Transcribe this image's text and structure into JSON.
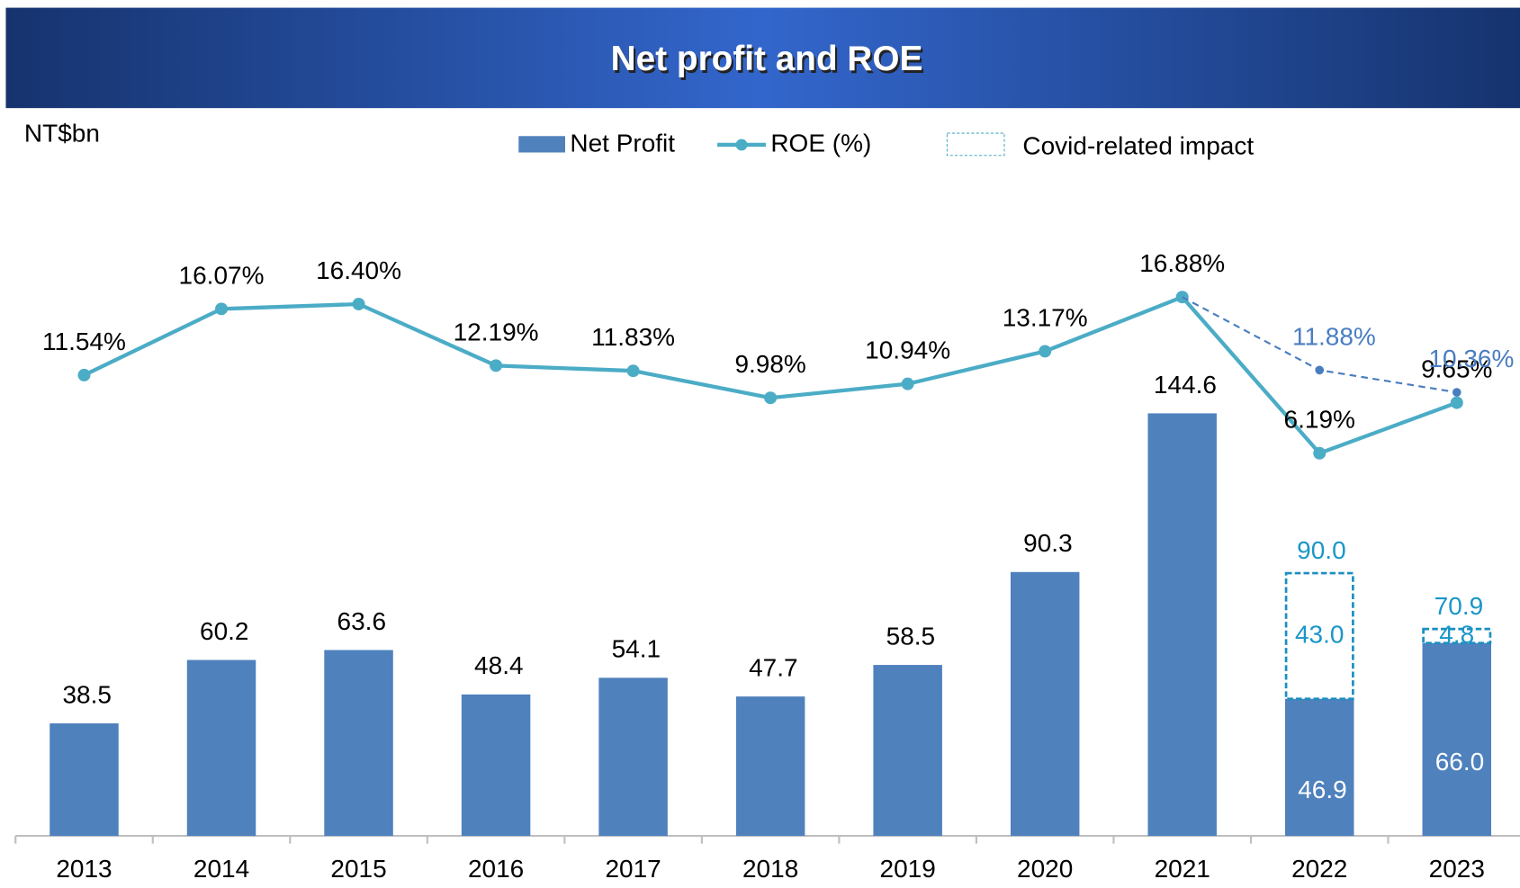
{
  "chart_data": {
    "type": "bar",
    "title": "Net profit and ROE",
    "y_unit_label": "NT$bn",
    "categories": [
      "2013",
      "2014",
      "2015",
      "2016",
      "2017",
      "2018",
      "2019",
      "2020",
      "2021",
      "2022",
      "2023"
    ],
    "ylim": [
      0,
      220
    ],
    "y2lim": [
      -20,
      24
    ],
    "series": [
      {
        "name": "Net Profit",
        "type": "bar",
        "color": "#4f81bd",
        "values": [
          38.5,
          60.2,
          63.6,
          48.4,
          54.1,
          47.7,
          58.5,
          90.3,
          144.6,
          46.9,
          66.0
        ],
        "value_labels": [
          "38.5",
          "60.2",
          "63.6",
          "48.4",
          "54.1",
          "47.7",
          "58.5",
          "90.3",
          "144.6",
          "46.9",
          "66.0"
        ]
      },
      {
        "name": "ROE (%)",
        "type": "line",
        "axis": "y2",
        "color": "#4bacc6",
        "values": [
          11.54,
          16.07,
          16.4,
          12.19,
          11.83,
          9.98,
          10.94,
          13.17,
          16.88,
          6.19,
          9.65
        ],
        "value_labels": [
          "11.54%",
          "16.07%",
          "16.40%",
          "12.19%",
          "11.83%",
          "9.98%",
          "10.94%",
          "13.17%",
          "16.88%",
          "6.19%",
          "9.65%"
        ]
      },
      {
        "name": "Covid-related impact",
        "type": "bar-stacked",
        "color": "#1a8fc0",
        "values": [
          null,
          null,
          null,
          null,
          null,
          null,
          null,
          null,
          null,
          43.0,
          4.8
        ],
        "value_labels": [
          null,
          null,
          null,
          null,
          null,
          null,
          null,
          null,
          null,
          "43.0",
          "4.8"
        ]
      }
    ],
    "total_labels": [
      null,
      null,
      null,
      null,
      null,
      null,
      null,
      null,
      null,
      "90.0",
      "70.9"
    ],
    "roe_adjusted": {
      "axis": "y2",
      "color": "#4a7dc0",
      "values": [
        null,
        null,
        null,
        null,
        null,
        null,
        null,
        null,
        null,
        11.88,
        10.36
      ],
      "value_labels": [
        null,
        null,
        null,
        null,
        null,
        null,
        null,
        null,
        null,
        "11.88%",
        "10.36%"
      ]
    }
  }
}
